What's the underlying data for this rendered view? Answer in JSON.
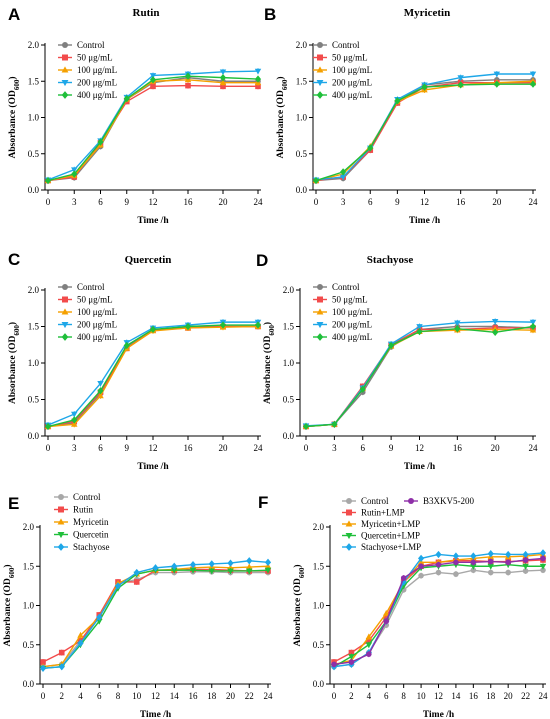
{
  "chart_data": [
    {
      "id": "A",
      "panel_label": "A",
      "type": "line",
      "title": "Rutin",
      "xlabel": "Time /h",
      "ylabel": "Absorbance (OD600)",
      "ylabel_sub": "600",
      "x": [
        0,
        3,
        6,
        9,
        12,
        16,
        20,
        24
      ],
      "xlim": [
        0,
        24
      ],
      "ylim": [
        0,
        2.0
      ],
      "yticks": [
        "0.0",
        "0.5",
        "1.0",
        "1.5",
        "2.0"
      ],
      "series": [
        {
          "name": "Control",
          "color": "#808080",
          "marker": "circle",
          "values": [
            0.13,
            0.17,
            0.6,
            1.25,
            1.48,
            1.55,
            1.5,
            1.5
          ]
        },
        {
          "name": "50 μg/mL",
          "color": "#f24b4b",
          "marker": "square",
          "values": [
            0.13,
            0.18,
            0.65,
            1.22,
            1.43,
            1.44,
            1.43,
            1.43
          ]
        },
        {
          "name": "100 μg/mL",
          "color": "#f5a000",
          "marker": "triangle-up",
          "values": [
            0.13,
            0.2,
            0.62,
            1.25,
            1.5,
            1.52,
            1.48,
            1.48
          ]
        },
        {
          "name": "200 μg/mL",
          "color": "#1ea7e8",
          "marker": "triangle-down",
          "values": [
            0.14,
            0.28,
            0.68,
            1.28,
            1.58,
            1.6,
            1.63,
            1.64
          ]
        },
        {
          "name": "400 μg/mL",
          "color": "#1fbf3a",
          "marker": "diamond",
          "values": [
            0.13,
            0.22,
            0.66,
            1.26,
            1.52,
            1.57,
            1.55,
            1.53
          ]
        }
      ]
    },
    {
      "id": "B",
      "panel_label": "B",
      "type": "line",
      "title": "Myricetin",
      "xlabel": "Time /h",
      "ylabel": "Absorbance (OD600)",
      "ylabel_sub": "600",
      "x": [
        0,
        3,
        6,
        9,
        12,
        16,
        20,
        24
      ],
      "xlim": [
        0,
        24
      ],
      "ylim": [
        0,
        2.0
      ],
      "yticks": [
        "0.0",
        "0.5",
        "1.0",
        "1.5",
        "2.0"
      ],
      "series": [
        {
          "name": "Control",
          "color": "#808080",
          "marker": "circle",
          "values": [
            0.13,
            0.16,
            0.55,
            1.22,
            1.45,
            1.5,
            1.52,
            1.52
          ]
        },
        {
          "name": "50 μg/mL",
          "color": "#f24b4b",
          "marker": "square",
          "values": [
            0.13,
            0.18,
            0.55,
            1.2,
            1.42,
            1.48,
            1.48,
            1.48
          ]
        },
        {
          "name": "100 μg/mL",
          "color": "#f5a000",
          "marker": "triangle-up",
          "values": [
            0.13,
            0.22,
            0.6,
            1.22,
            1.38,
            1.45,
            1.48,
            1.5
          ]
        },
        {
          "name": "200 μg/mL",
          "color": "#1ea7e8",
          "marker": "triangle-down",
          "values": [
            0.14,
            0.18,
            0.58,
            1.25,
            1.45,
            1.55,
            1.6,
            1.6
          ]
        },
        {
          "name": "400 μg/mL",
          "color": "#1fbf3a",
          "marker": "diamond",
          "values": [
            0.13,
            0.25,
            0.58,
            1.23,
            1.42,
            1.45,
            1.46,
            1.46
          ]
        }
      ]
    },
    {
      "id": "C",
      "panel_label": "C",
      "type": "line",
      "title": "Quercetin",
      "xlabel": "Time /h",
      "ylabel": "Absorbance (OD600)",
      "ylabel_sub": "600",
      "x": [
        0,
        3,
        6,
        9,
        12,
        16,
        20,
        24
      ],
      "xlim": [
        0,
        24
      ],
      "ylim": [
        0,
        2.0
      ],
      "yticks": [
        "0.0",
        "0.5",
        "1.0",
        "1.5",
        "2.0"
      ],
      "series": [
        {
          "name": "Control",
          "color": "#808080",
          "marker": "circle",
          "values": [
            0.13,
            0.18,
            0.58,
            1.22,
            1.45,
            1.5,
            1.5,
            1.5
          ]
        },
        {
          "name": "50 μg/mL",
          "color": "#f24b4b",
          "marker": "square",
          "values": [
            0.13,
            0.2,
            0.6,
            1.2,
            1.45,
            1.48,
            1.5,
            1.5
          ]
        },
        {
          "name": "100 μg/mL",
          "color": "#f5a000",
          "marker": "triangle-up",
          "values": [
            0.13,
            0.16,
            0.55,
            1.2,
            1.44,
            1.48,
            1.49,
            1.5
          ]
        },
        {
          "name": "200 μg/mL",
          "color": "#1ea7e8",
          "marker": "triangle-down",
          "values": [
            0.15,
            0.3,
            0.72,
            1.28,
            1.48,
            1.52,
            1.56,
            1.56
          ]
        },
        {
          "name": "400 μg/mL",
          "color": "#1fbf3a",
          "marker": "diamond",
          "values": [
            0.13,
            0.22,
            0.62,
            1.24,
            1.46,
            1.5,
            1.52,
            1.52
          ]
        }
      ]
    },
    {
      "id": "D",
      "panel_label": "D",
      "type": "line",
      "title": "Stachyose",
      "xlabel": "Time /h",
      "ylabel": "Absorbance (OD600)",
      "ylabel_sub": "600",
      "x": [
        0,
        3,
        6,
        9,
        12,
        16,
        20,
        24
      ],
      "xlim": [
        0,
        24
      ],
      "ylim": [
        0,
        2.0
      ],
      "yticks": [
        "0.0",
        "0.5",
        "1.0",
        "1.5",
        "2.0"
      ],
      "series": [
        {
          "name": "Control",
          "color": "#808080",
          "marker": "circle",
          "values": [
            0.13,
            0.16,
            0.6,
            1.22,
            1.46,
            1.5,
            1.5,
            1.48
          ]
        },
        {
          "name": "50 μg/mL",
          "color": "#f24b4b",
          "marker": "square",
          "values": [
            0.13,
            0.16,
            0.68,
            1.25,
            1.46,
            1.46,
            1.48,
            1.48
          ]
        },
        {
          "name": "100 μg/mL",
          "color": "#f5a000",
          "marker": "triangle-up",
          "values": [
            0.13,
            0.16,
            0.65,
            1.23,
            1.43,
            1.45,
            1.46,
            1.45
          ]
        },
        {
          "name": "200 μg/mL",
          "color": "#1ea7e8",
          "marker": "triangle-down",
          "values": [
            0.14,
            0.16,
            0.66,
            1.26,
            1.5,
            1.55,
            1.57,
            1.56
          ]
        },
        {
          "name": "400 μg/mL",
          "color": "#1fbf3a",
          "marker": "diamond",
          "values": [
            0.13,
            0.16,
            0.64,
            1.24,
            1.43,
            1.47,
            1.42,
            1.5
          ]
        }
      ]
    },
    {
      "id": "E",
      "panel_label": "E",
      "type": "line",
      "title": "",
      "xlabel": "Time /h",
      "ylabel": "Absorbance (OD600)",
      "ylabel_sub": "600",
      "x": [
        0,
        2,
        4,
        6,
        8,
        10,
        12,
        14,
        16,
        18,
        20,
        22,
        24
      ],
      "xlim": [
        0,
        24
      ],
      "ylim": [
        0,
        2.0
      ],
      "yticks": [
        "0.0",
        "0.5",
        "1.0",
        "1.5",
        "2.0"
      ],
      "series": [
        {
          "name": "Control",
          "color": "#a8a8a8",
          "marker": "circle",
          "values": [
            0.22,
            0.25,
            0.55,
            0.85,
            1.28,
            1.33,
            1.42,
            1.42,
            1.43,
            1.43,
            1.42,
            1.42,
            1.42
          ]
        },
        {
          "name": "Rutin",
          "color": "#f24b4b",
          "marker": "square",
          "values": [
            0.28,
            0.4,
            0.55,
            0.88,
            1.3,
            1.3,
            1.45,
            1.45,
            1.46,
            1.46,
            1.45,
            1.44,
            1.44
          ]
        },
        {
          "name": "Myricetin",
          "color": "#f5a000",
          "marker": "triangle-up",
          "values": [
            0.22,
            0.25,
            0.62,
            0.85,
            1.28,
            1.4,
            1.45,
            1.46,
            1.48,
            1.49,
            1.48,
            1.49,
            1.5
          ]
        },
        {
          "name": "Quercetin",
          "color": "#1fbf3a",
          "marker": "triangle-down",
          "values": [
            0.2,
            0.22,
            0.5,
            0.8,
            1.22,
            1.4,
            1.45,
            1.45,
            1.45,
            1.44,
            1.44,
            1.44,
            1.45
          ]
        },
        {
          "name": "Stachyose",
          "color": "#1ea7e8",
          "marker": "diamond",
          "values": [
            0.2,
            0.22,
            0.52,
            0.85,
            1.25,
            1.42,
            1.48,
            1.5,
            1.52,
            1.53,
            1.54,
            1.57,
            1.55
          ]
        }
      ]
    },
    {
      "id": "F",
      "panel_label": "F",
      "type": "line",
      "title": "",
      "xlabel": "Time /h",
      "ylabel": "Absorbance (OD600)",
      "ylabel_sub": "600",
      "x": [
        0,
        2,
        4,
        6,
        8,
        10,
        12,
        14,
        16,
        18,
        20,
        22,
        24
      ],
      "xlim": [
        0,
        24
      ],
      "ylim": [
        0,
        2.0
      ],
      "yticks": [
        "0.0",
        "0.5",
        "1.0",
        "1.5",
        "2.0"
      ],
      "series": [
        {
          "name": "Control",
          "color": "#a8a8a8",
          "marker": "circle",
          "values": [
            0.22,
            0.25,
            0.4,
            0.75,
            1.2,
            1.38,
            1.42,
            1.4,
            1.45,
            1.42,
            1.42,
            1.44,
            1.45
          ]
        },
        {
          "name": "Rutin+LMP",
          "color": "#f24b4b",
          "marker": "square",
          "values": [
            0.28,
            0.4,
            0.55,
            0.85,
            1.3,
            1.5,
            1.55,
            1.57,
            1.57,
            1.56,
            1.56,
            1.57,
            1.58
          ]
        },
        {
          "name": "Myricetin+LMP",
          "color": "#f5a000",
          "marker": "triangle-up",
          "values": [
            0.25,
            0.3,
            0.6,
            0.9,
            1.3,
            1.55,
            1.55,
            1.58,
            1.6,
            1.62,
            1.62,
            1.63,
            1.65
          ]
        },
        {
          "name": "Quercetin+LMP",
          "color": "#1fbf3a",
          "marker": "triangle-down",
          "values": [
            0.22,
            0.35,
            0.5,
            0.8,
            1.25,
            1.48,
            1.5,
            1.52,
            1.5,
            1.5,
            1.52,
            1.5,
            1.5
          ]
        },
        {
          "name": "Stachyose+LMP",
          "color": "#1ea7e8",
          "marker": "diamond",
          "values": [
            0.22,
            0.25,
            0.4,
            0.8,
            1.3,
            1.6,
            1.65,
            1.63,
            1.63,
            1.66,
            1.65,
            1.65,
            1.67
          ]
        },
        {
          "name": "B3XKV5-200",
          "color": "#8e2fa8",
          "marker": "circle",
          "values": [
            0.25,
            0.28,
            0.38,
            0.8,
            1.35,
            1.5,
            1.52,
            1.55,
            1.55,
            1.56,
            1.55,
            1.58,
            1.6
          ]
        }
      ]
    }
  ]
}
